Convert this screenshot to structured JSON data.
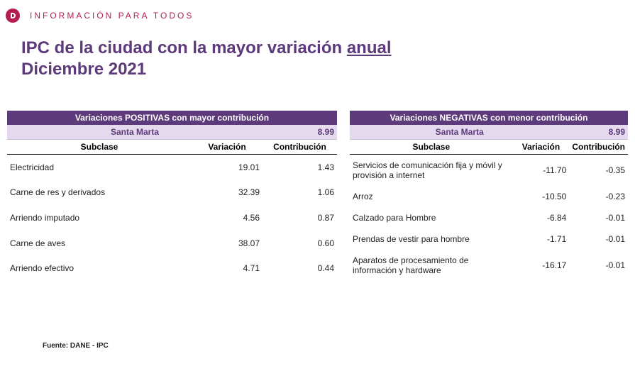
{
  "header": {
    "tagline": "INFORMACIÓN PARA TODOS"
  },
  "title": {
    "prefix": "IPC de la ciudad con la mayor variación ",
    "underlined": "anual",
    "line2": "Diciembre 2021"
  },
  "colors": {
    "brand_red": "#b41e4e",
    "purple_dark": "#5d3a7a",
    "purple_light": "#e5d9ee"
  },
  "positive": {
    "banner": "Variaciones POSITIVAS con mayor contribución",
    "city": "Santa Marta",
    "city_value": "8.99",
    "col_subclass": "Subclase",
    "col_var": "Variación",
    "col_contrib": "Contribución",
    "rows": [
      {
        "sub": "Electricidad",
        "var": "19.01",
        "contrib": "1.43"
      },
      {
        "sub": "Carne de res y derivados",
        "var": "32.39",
        "contrib": "1.06"
      },
      {
        "sub": "Arriendo imputado",
        "var": "4.56",
        "contrib": "0.87"
      },
      {
        "sub": "Carne de aves",
        "var": "38.07",
        "contrib": "0.60"
      },
      {
        "sub": "Arriendo efectivo",
        "var": "4.71",
        "contrib": "0.44"
      }
    ]
  },
  "negative": {
    "banner": "Variaciones NEGATIVAS con menor contribución",
    "city": "Santa Marta",
    "city_value": "8.99",
    "col_subclass": "Subclase",
    "col_var": "Variación",
    "col_contrib": "Contribución",
    "rows": [
      {
        "sub": "Servicios de comunicación fija y móvil y provisión a internet",
        "var": "-11.70",
        "contrib": "-0.35"
      },
      {
        "sub": "Arroz",
        "var": "-10.50",
        "contrib": "-0.23"
      },
      {
        "sub": "Calzado para Hombre",
        "var": "-6.84",
        "contrib": "-0.01"
      },
      {
        "sub": "Prendas de vestir para hombre",
        "var": "-1.71",
        "contrib": "-0.01"
      },
      {
        "sub": "Aparatos de procesamiento de información y hardware",
        "var": "-16.17",
        "contrib": "-0.01"
      }
    ]
  },
  "footer": {
    "source": "Fuente: DANE - IPC"
  }
}
